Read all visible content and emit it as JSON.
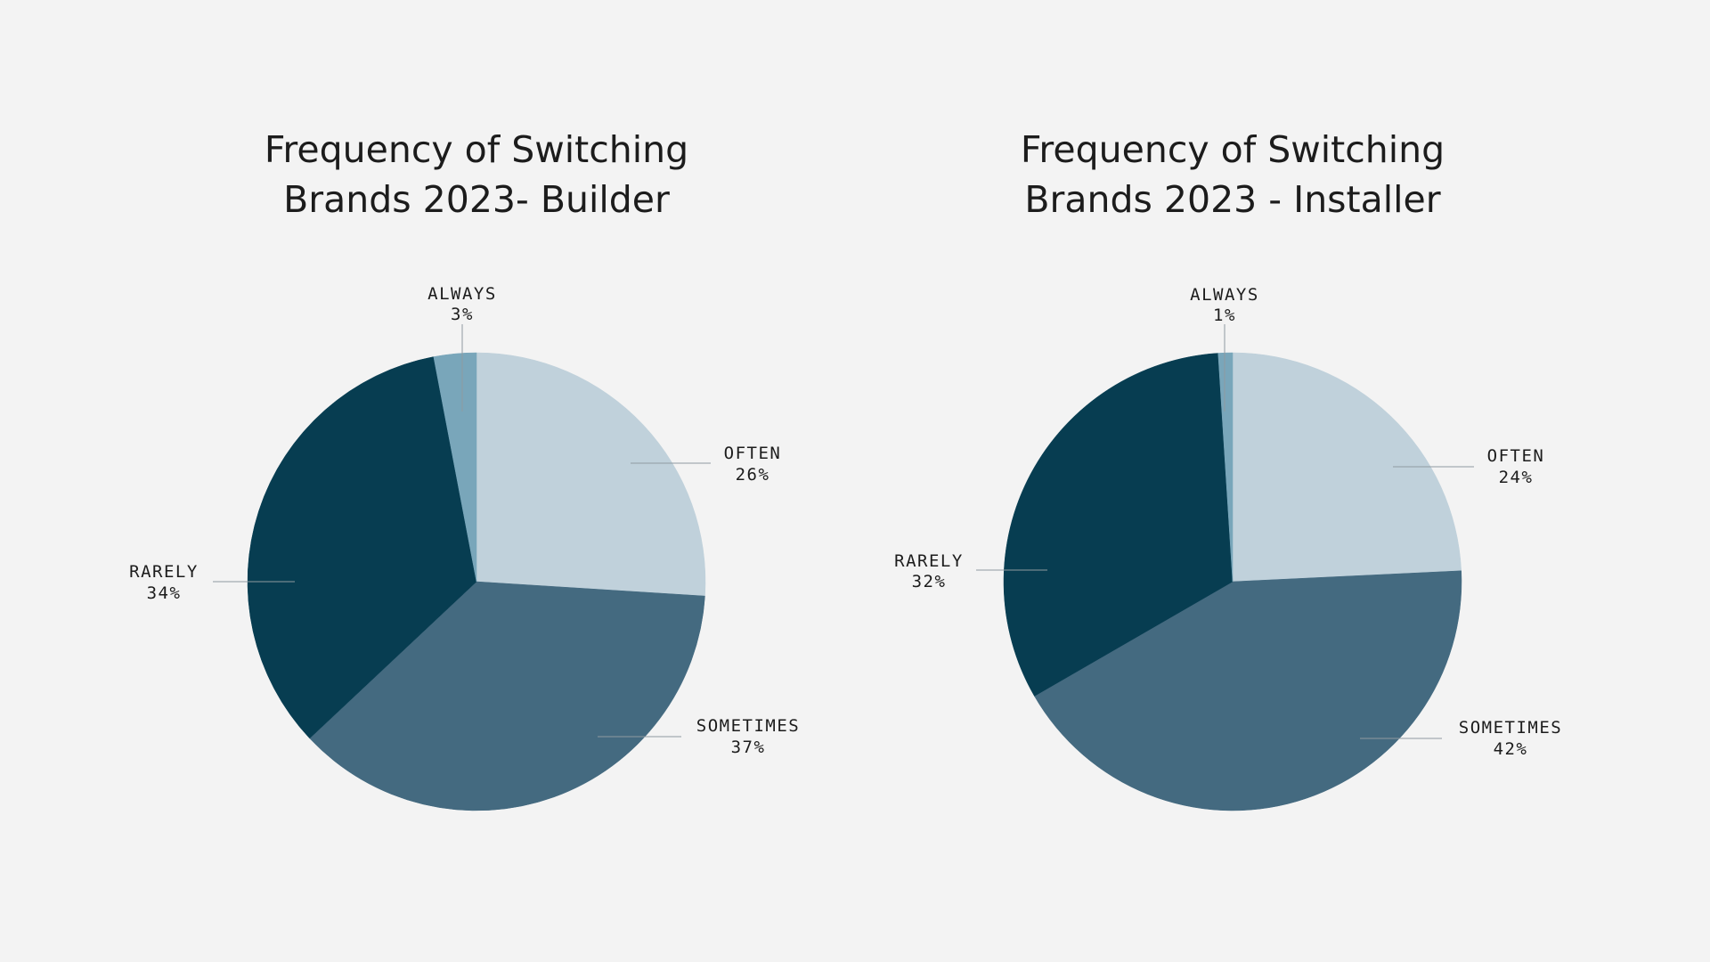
{
  "chart_data": [
    {
      "type": "pie",
      "title": [
        "Frequency of Switching",
        "Brands 2023- Builder"
      ],
      "slices": [
        {
          "label": "OFTEN",
          "value": 26,
          "value_label": "26%",
          "color": "#c0d1db"
        },
        {
          "label": "SOMETIMES",
          "value": 37,
          "value_label": "37%",
          "color": "#446a80"
        },
        {
          "label": "RARELY",
          "value": 34,
          "value_label": "34%",
          "color": "#073d51"
        },
        {
          "label": "ALWAYS",
          "value": 3,
          "value_label": "3%",
          "color": "#79a6ba"
        }
      ]
    },
    {
      "type": "pie",
      "title": [
        "Frequency of Switching",
        "Brands 2023 - Installer"
      ],
      "slices": [
        {
          "label": "OFTEN",
          "value": 24,
          "value_label": "24%",
          "color": "#c0d1db"
        },
        {
          "label": "SOMETIMES",
          "value": 42,
          "value_label": "42%",
          "color": "#446a80"
        },
        {
          "label": "RARELY",
          "value": 32,
          "value_label": "32%",
          "color": "#073d51"
        },
        {
          "label": "ALWAYS",
          "value": 1,
          "value_label": "1%",
          "color": "#79a6ba"
        }
      ]
    }
  ],
  "background": "#f3f3f3"
}
